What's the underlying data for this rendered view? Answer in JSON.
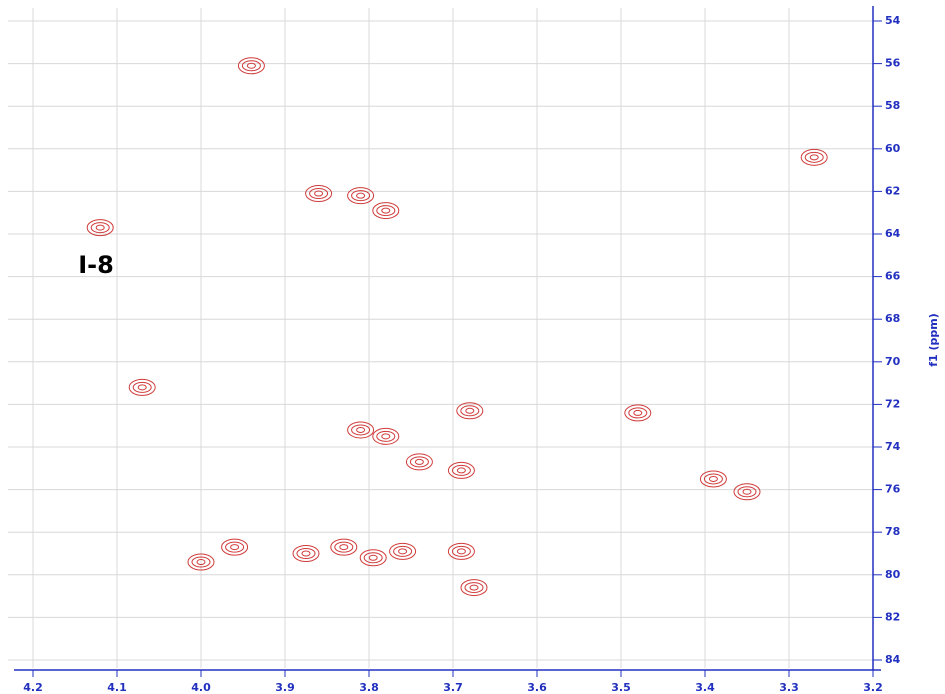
{
  "chart_data": {
    "type": "scatter",
    "annotation": "I-8",
    "ylabel": "f1 (ppm)",
    "color": "#d03a3a",
    "axis_color": "#2230c0",
    "grid": true,
    "xlim": [
      4.2,
      3.2
    ],
    "ylim": [
      84,
      54
    ],
    "xticks": [
      4.2,
      4.1,
      {
        "value": 4,
        "label": "4.0"
      },
      3.9,
      3.8,
      3.7,
      3.6,
      3.5,
      3.4,
      3.3,
      3.2
    ],
    "yticks": [
      54,
      56,
      58,
      60,
      62,
      64,
      66,
      68,
      70,
      72,
      74,
      76,
      78,
      80,
      82,
      84
    ],
    "x": [
      3.94,
      3.27,
      3.86,
      3.81,
      3.78,
      4.12,
      4.07,
      3.68,
      3.48,
      3.81,
      3.78,
      3.74,
      3.69,
      3.39,
      3.35,
      3.96,
      4.0,
      3.875,
      3.83,
      3.795,
      3.76,
      3.69,
      3.675
    ],
    "values": [
      56.1,
      60.4,
      62.1,
      62.2,
      62.9,
      63.7,
      71.2,
      72.3,
      72.4,
      73.2,
      73.5,
      74.7,
      75.1,
      75.5,
      76.1,
      78.7,
      79.4,
      79.0,
      78.7,
      79.2,
      78.9,
      78.9,
      80.6
    ]
  }
}
